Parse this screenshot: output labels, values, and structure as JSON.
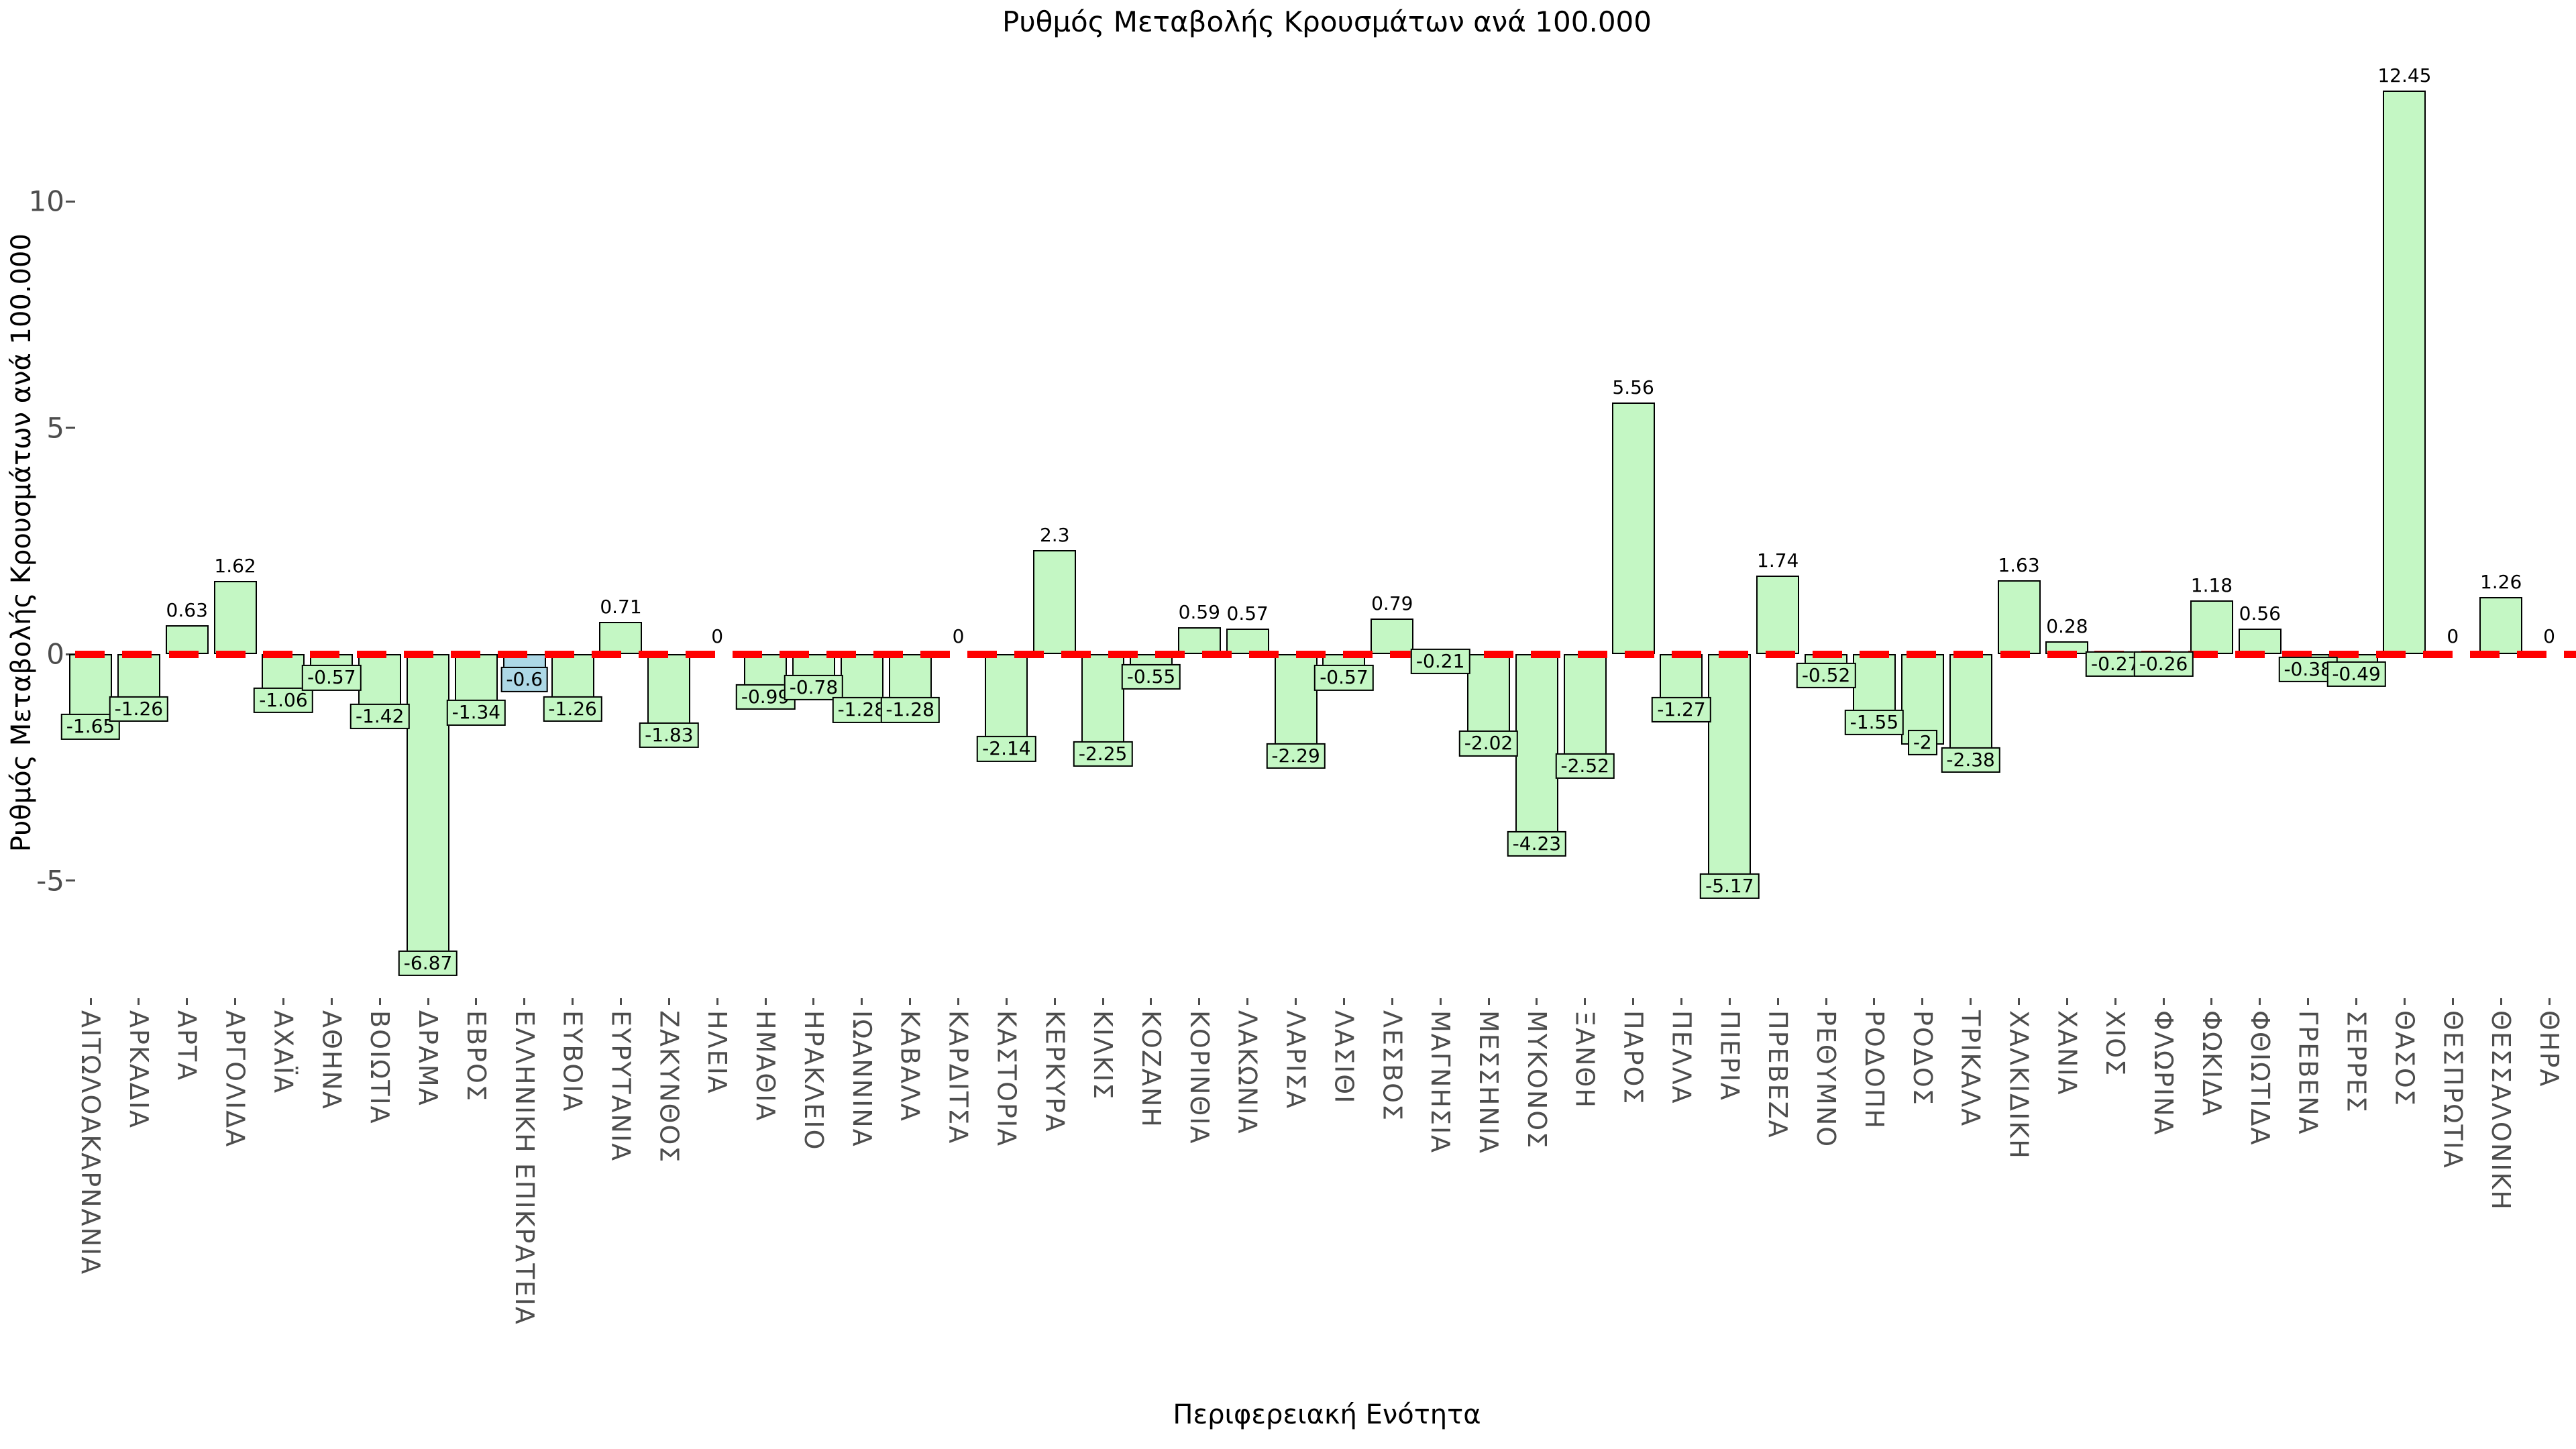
{
  "chart": {
    "colors": {
      "bar_fill": "#c4f7c4",
      "bar_edge": "#000000",
      "highlight_fill": "#add8e6",
      "zero_line": "#ff0000",
      "tick_label": "#4d4d4d",
      "title_text": "#000000",
      "background": "#ffffff"
    }
  },
  "chart_data": {
    "type": "bar",
    "title": "Ρυθμός Μεταβολής Κρουσμάτων ανά 100.000",
    "xlabel": "Περιφερειακή Ενότητα",
    "ylabel": "Ρυθμός Μεταβολής Κρουσμάτων ανά 100.000",
    "yticks": [
      10,
      5,
      0,
      -5
    ],
    "ylim": [
      -7.8,
      13.8
    ],
    "grid": false,
    "legend_position": "none",
    "zero_reference_line": {
      "y": 0,
      "style": "dashed",
      "color": "#ff0000"
    },
    "highlighted_category": "ΕΛΛΗΝΙΚΗ ΕΠΙΚΡΑΤΕΙΑ",
    "categories": [
      "ΑΙΤΩΛΟΑΚΑΡΝΑΝΙΑ",
      "ΑΡΚΑΔΙΑ",
      "ΑΡΤΑ",
      "ΑΡΓΟΛΙΔΑ",
      "ΑΧΑΪΑ",
      "ΑΘΗΝΑ",
      "ΒΟΙΩΤΙΑ",
      "ΔΡΑΜΑ",
      "ΕΒΡΟΣ",
      "ΕΛΛΗΝΙΚΗ ΕΠΙΚΡΑΤΕΙΑ",
      "ΕΥΒΟΙΑ",
      "ΕΥΡΥΤΑΝΙΑ",
      "ΖΑΚΥΝΘΟΣ",
      "ΗΛΕΙΑ",
      "ΗΜΑΘΙΑ",
      "ΗΡΑΚΛΕΙΟ",
      "ΙΩΑΝΝΙΝΑ",
      "ΚΑΒΑΛΑ",
      "ΚΑΡΔΙΤΣΑ",
      "ΚΑΣΤΟΡΙΑ",
      "ΚΕΡΚΥΡΑ",
      "ΚΙΛΚΙΣ",
      "ΚΟΖΑΝΗ",
      "ΚΟΡΙΝΘΙΑ",
      "ΛΑΚΩΝΙΑ",
      "ΛΑΡΙΣΑ",
      "ΛΑΣΙΘΙ",
      "ΛΕΣΒΟΣ",
      "ΜΑΓΝΗΣΙΑ",
      "ΜΕΣΣΗΝΙΑ",
      "ΜΥΚΟΝΟΣ",
      "ΞΑΝΘΗ",
      "ΠΑΡΟΣ",
      "ΠΕΛΛΑ",
      "ΠΙΕΡΙΑ",
      "ΠΡΕΒΕΖΑ",
      "ΡΕΘΥΜΝΟ",
      "ΡΟΔΟΠΗ",
      "ΡΟΔΟΣ",
      "ΤΡΙΚΑΛΑ",
      "ΧΑΛΚΙΔΙΚΗ",
      "ΧΑΝΙΑ",
      "ΧΙΟΣ",
      "ΦΛΩΡΙΝΑ",
      "ΦΩΚΙΔΑ",
      "ΦΘΙΩΤΙΔΑ",
      "ΓΡΕΒΕΝΑ",
      "ΣΕΡΡΕΣ",
      "ΘΑΣΟΣ",
      "ΘΕΣΠΡΩΤΙΑ",
      "ΘΕΣΣΑΛΟΝΙΚΗ",
      "ΘΗΡΑ"
    ],
    "values": [
      -1.65,
      -1.26,
      0.63,
      1.62,
      -1.06,
      -0.57,
      -1.42,
      -6.87,
      -1.34,
      -0.6,
      -1.26,
      0.71,
      -1.83,
      0,
      -0.99,
      -0.78,
      -1.28,
      -1.28,
      0,
      -2.14,
      2.3,
      -2.25,
      -0.55,
      0.59,
      0.57,
      -2.29,
      -0.57,
      0.79,
      -0.21,
      -2.02,
      -4.23,
      -2.52,
      5.56,
      -1.27,
      -5.17,
      1.74,
      -0.52,
      -1.55,
      -2,
      -2.38,
      1.63,
      0.28,
      -0.27,
      -0.26,
      1.18,
      0.56,
      -0.38,
      -0.49,
      12.45,
      0,
      1.26,
      0
    ]
  }
}
